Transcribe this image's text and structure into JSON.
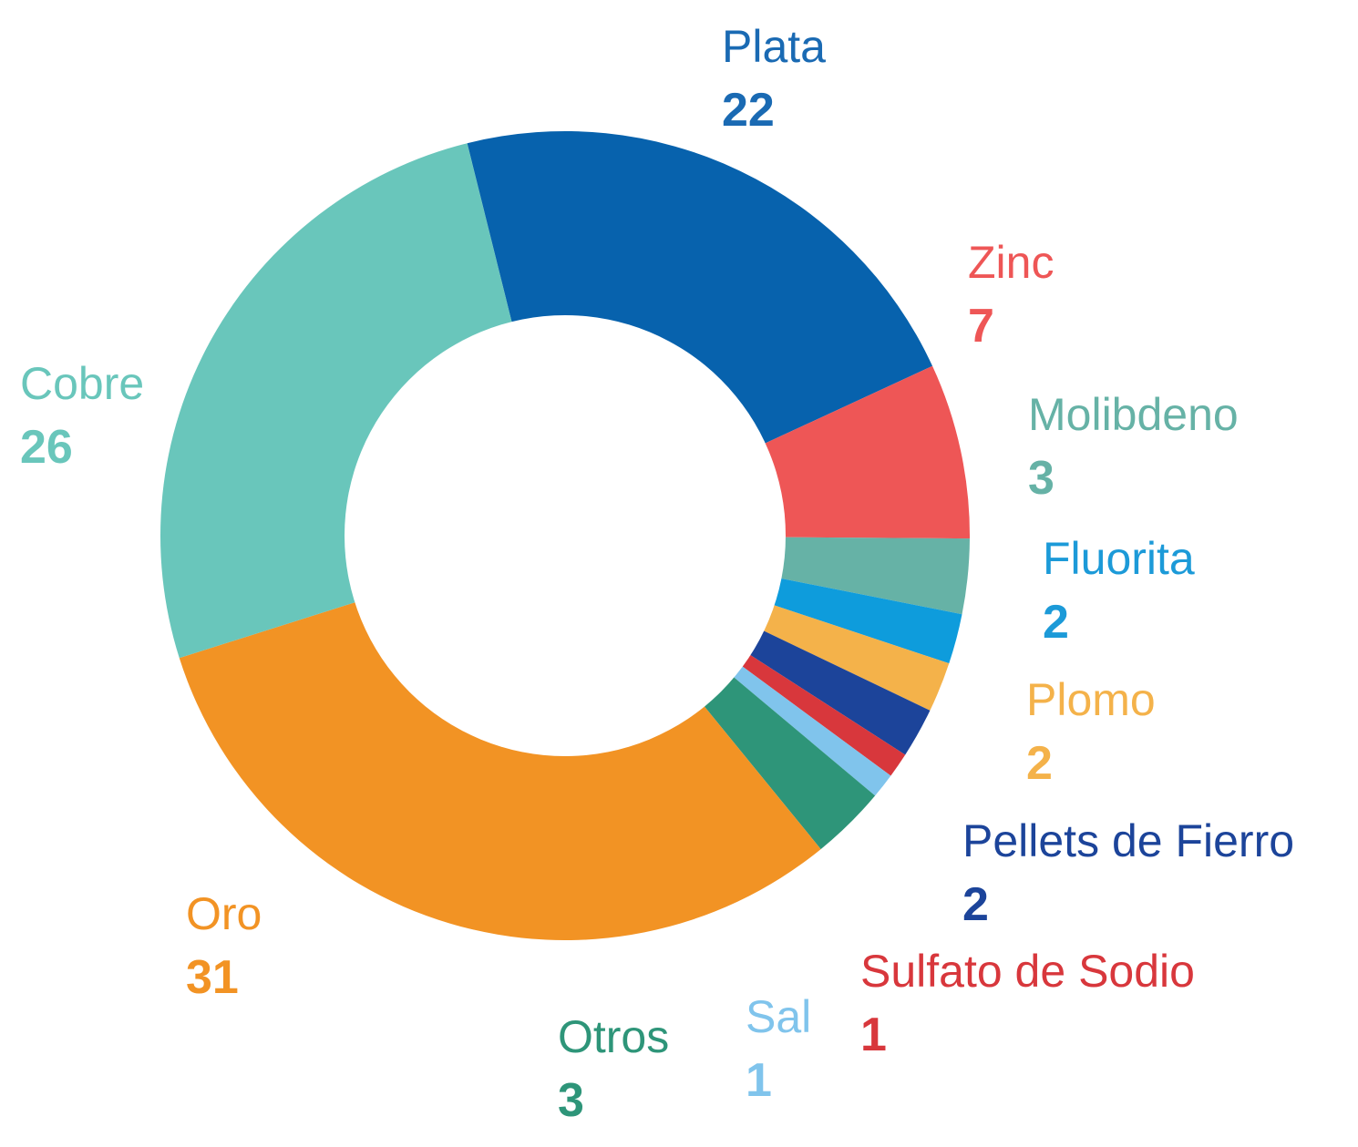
{
  "chart_data": {
    "type": "pie",
    "variant": "donut",
    "categories": [
      "Plata",
      "Zinc",
      "Molibdeno",
      "Fluorita",
      "Plomo",
      "Pellets de Fierro",
      "Sulfato de Sodio",
      "Sal",
      "Otros",
      "Oro",
      "Cobre"
    ],
    "values": [
      22,
      7,
      3,
      2,
      2,
      2,
      1,
      1,
      3,
      31,
      26
    ],
    "value_labels": [
      "22",
      "7",
      "3",
      "2",
      "2",
      "2",
      "1",
      "1",
      "3",
      "31",
      "26"
    ],
    "colors": [
      "#0762ad",
      "#ee5656",
      "#66b2a6",
      "#0e9cdc",
      "#f4b24a",
      "#1c449a",
      "#d8373c",
      "#80c4ec",
      "#2e9579",
      "#f29324",
      "#69c6bb"
    ],
    "label_colors": [
      "#1a6ab3",
      "#ee5656",
      "#66b2a6",
      "#1c9ad8",
      "#f4b24a",
      "#1c449a",
      "#d8373c",
      "#80c4ec",
      "#2e9579",
      "#f29324",
      "#69c6bb"
    ],
    "title": "",
    "legend": "none"
  }
}
